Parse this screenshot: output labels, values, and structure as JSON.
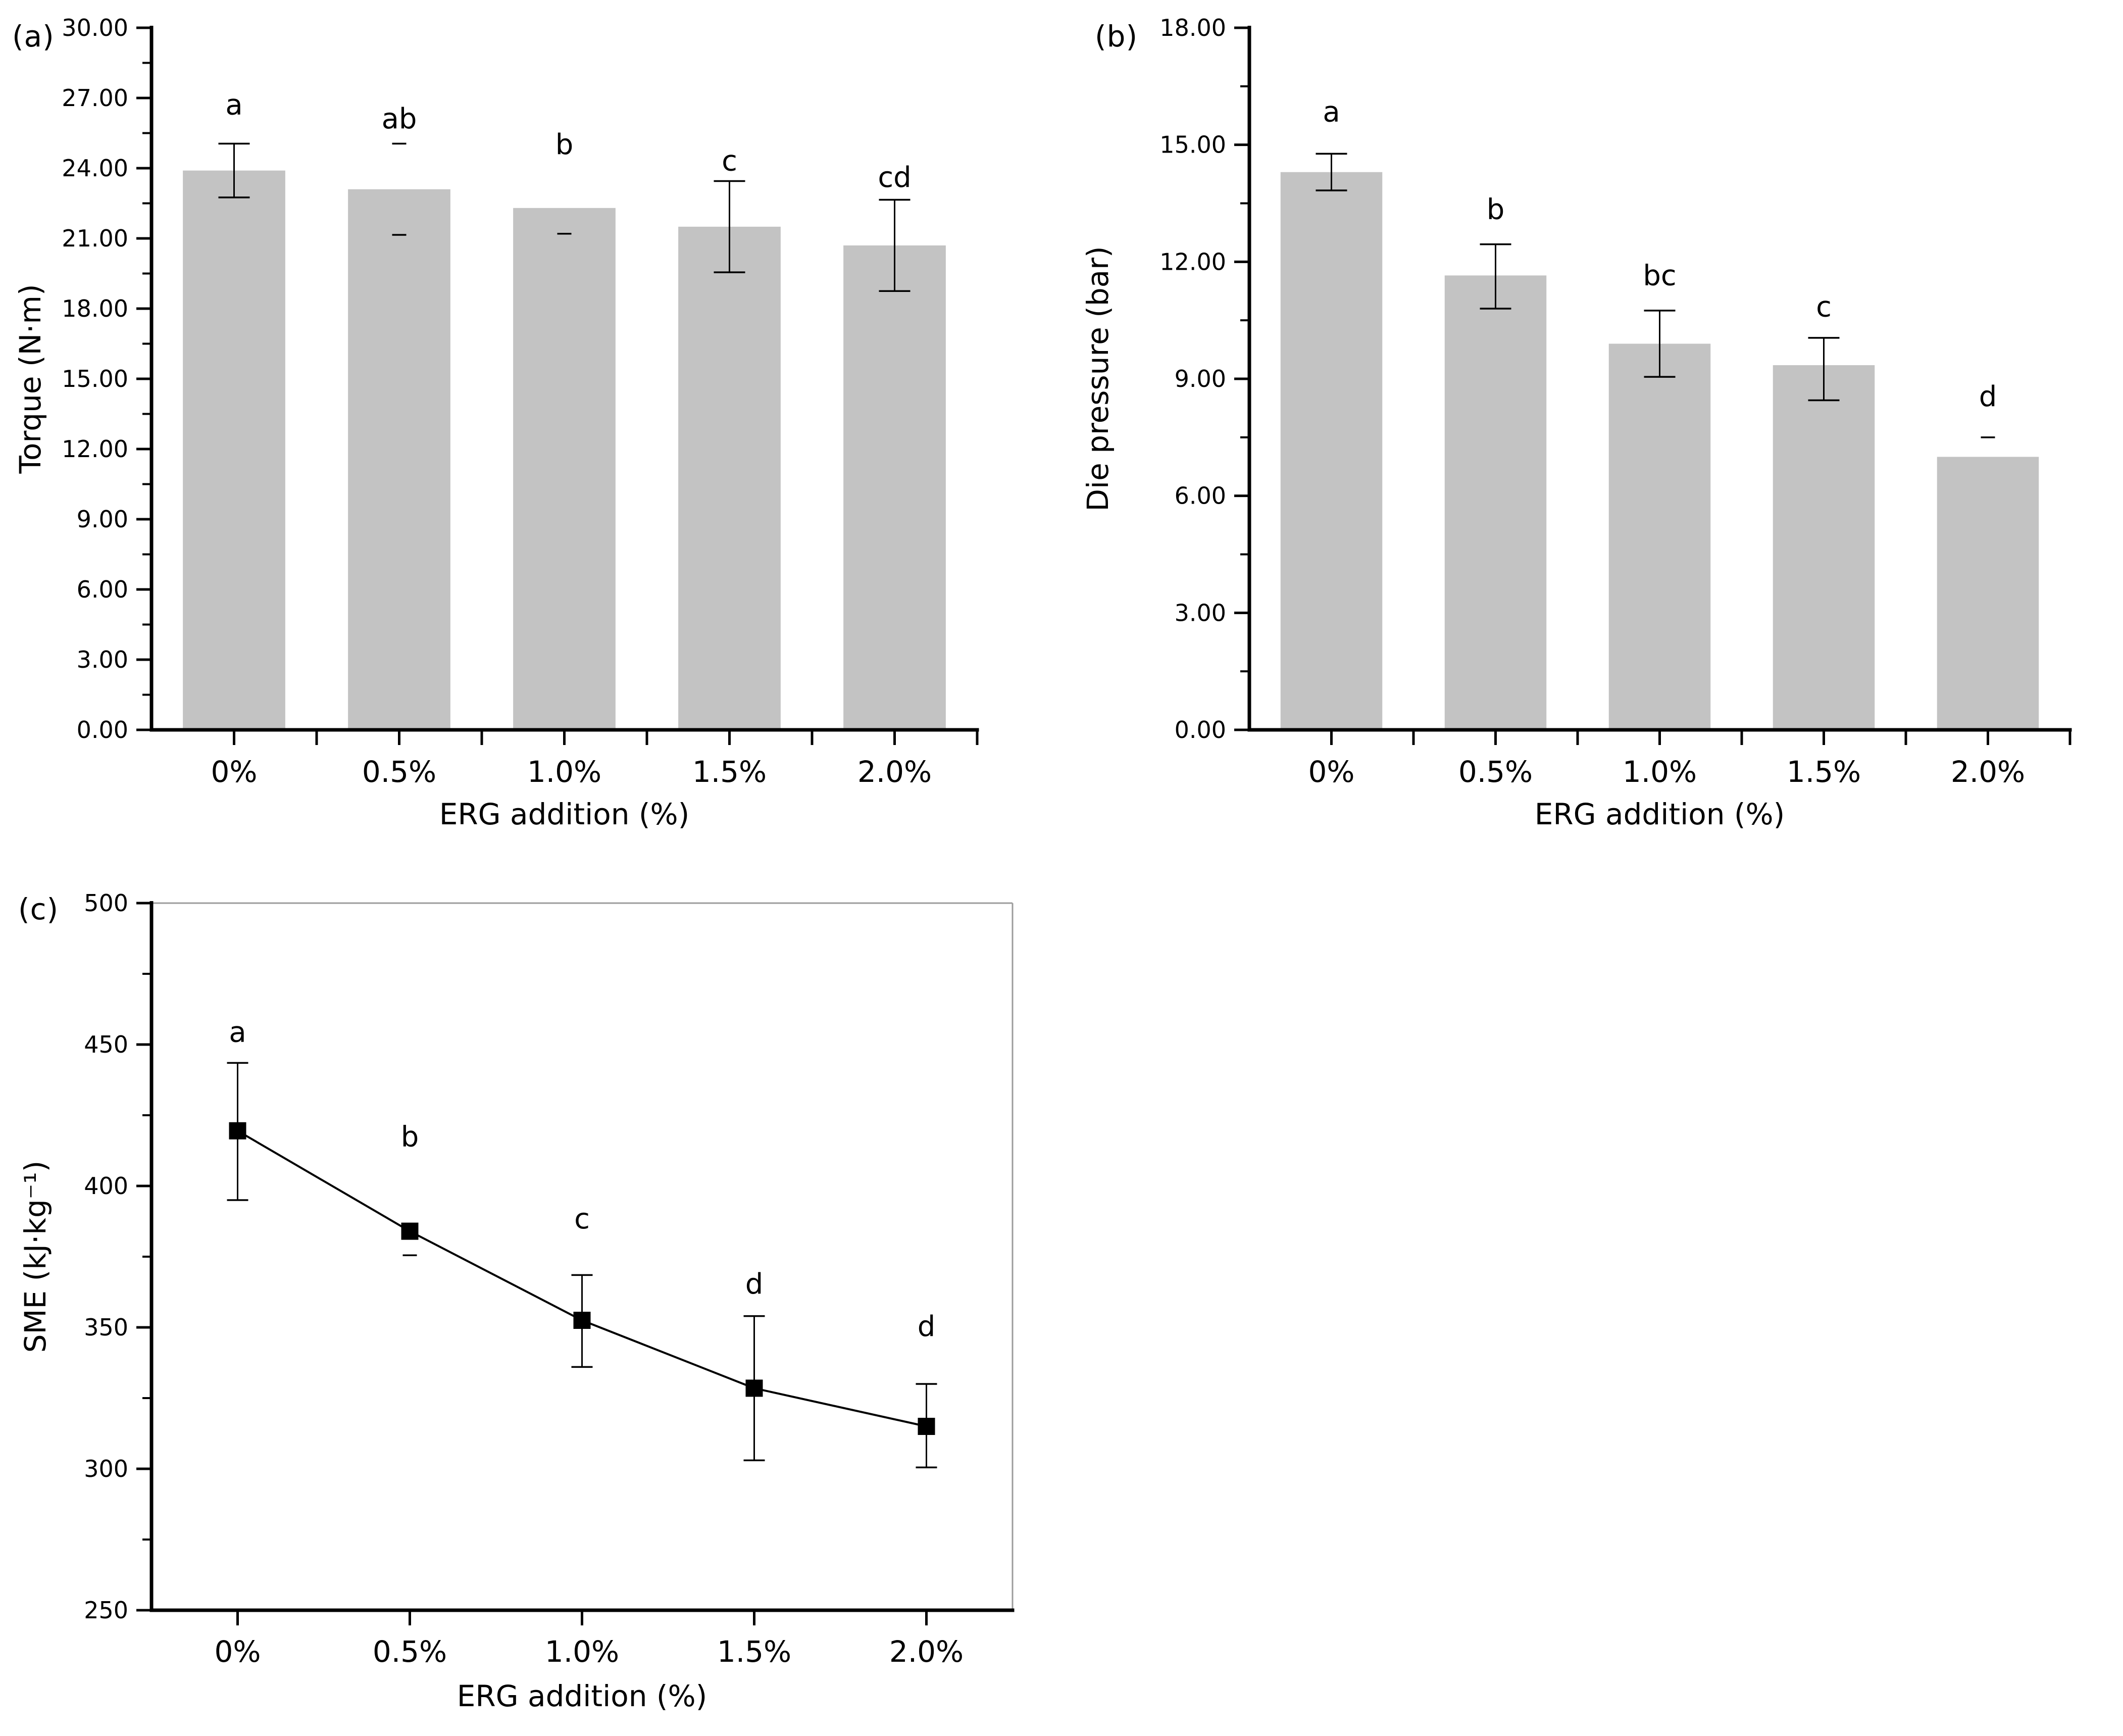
{
  "page": {
    "background": "#ffffff"
  },
  "panels": [
    {
      "tag": "(a)"
    },
    {
      "tag": "(b)"
    },
    {
      "tag": "(c)"
    }
  ],
  "colors": {
    "bar_fill": "#c3c3c3",
    "axis": "#000000",
    "frame_light": "#9c9c9c",
    "marker": "#000000",
    "text": "#000000"
  },
  "chart_data": [
    {
      "id": "torque",
      "panel": "(a)",
      "type": "bar",
      "title": "",
      "xlabel": "ERG addition (%)",
      "ylabel": "Torque (N·m)",
      "categories": [
        "0%",
        "0.5%",
        "1.0%",
        "1.5%",
        "2.0%"
      ],
      "values": [
        23.9,
        23.1,
        22.3,
        21.5,
        20.7
      ],
      "errors": [
        {
          "up": 1.15,
          "down": 1.15,
          "stem": true,
          "cap_up": true,
          "cap_down": true
        },
        {
          "up": 1.95,
          "down": 1.95,
          "stem": false,
          "cap_up": true,
          "cap_down": true
        },
        {
          "up": 0,
          "down": 1.1,
          "stem": false,
          "cap_up": false,
          "cap_down": true
        },
        {
          "up": 1.95,
          "down": 1.95,
          "stem": true,
          "cap_up": true,
          "cap_down": true
        },
        {
          "up": 1.95,
          "down": 1.95,
          "stem": true,
          "cap_up": true,
          "cap_down": true
        }
      ],
      "sig_labels": [
        "a",
        "ab",
        "b",
        "c",
        "cd"
      ],
      "sig_label_y": [
        26.3,
        25.7,
        24.6,
        23.9,
        23.2
      ],
      "ylim": [
        0,
        30
      ],
      "ytick_step": 3,
      "yminor_step": 1.5,
      "ytick_labels": [
        "0.00",
        "3.00",
        "6.00",
        "9.00",
        "12.00",
        "15.00",
        "18.00",
        "21.00",
        "24.00",
        "27.00",
        "30.00"
      ],
      "x_boundary_ticks": true,
      "grid": false,
      "legend": null,
      "box_frame": false
    },
    {
      "id": "die-pressure",
      "panel": "(b)",
      "type": "bar",
      "title": "",
      "xlabel": "ERG addition (%)",
      "ylabel": "Die pressure (bar)",
      "categories": [
        "0%",
        "0.5%",
        "1.0%",
        "1.5%",
        "2.0%"
      ],
      "values": [
        14.3,
        11.65,
        9.9,
        9.35,
        7.0
      ],
      "errors": [
        {
          "up": 0.47,
          "down": 0.47,
          "stem": true,
          "cap_up": true,
          "cap_down": true
        },
        {
          "up": 0.8,
          "down": 0.85,
          "stem": true,
          "cap_up": true,
          "cap_down": true
        },
        {
          "up": 0.85,
          "down": 0.85,
          "stem": true,
          "cap_up": true,
          "cap_down": true
        },
        {
          "up": 0.7,
          "down": 0.9,
          "stem": true,
          "cap_up": true,
          "cap_down": true
        },
        {
          "up": 0.5,
          "down": 0,
          "stem": false,
          "cap_up": true,
          "cap_down": false
        }
      ],
      "sig_labels": [
        "a",
        "b",
        "bc",
        "c",
        "d"
      ],
      "sig_label_y": [
        15.6,
        13.1,
        11.4,
        10.6,
        8.3
      ],
      "ylim": [
        0,
        18
      ],
      "ytick_step": 3,
      "yminor_step": 1.5,
      "ytick_labels": [
        "0.00",
        "3.00",
        "6.00",
        "9.00",
        "12.00",
        "15.00",
        "18.00"
      ],
      "x_boundary_ticks": true,
      "grid": false,
      "legend": null,
      "box_frame": false
    },
    {
      "id": "sme",
      "panel": "(c)",
      "type": "line",
      "title": "",
      "xlabel": "ERG addition (%)",
      "ylabel": "SME (kJ·kg⁻¹)",
      "categories": [
        "0%",
        "0.5%",
        "1.0%",
        "1.5%",
        "2.0%"
      ],
      "values": [
        419.5,
        384,
        352.5,
        328.5,
        315
      ],
      "errors": [
        {
          "up": 24,
          "down": 24.5,
          "stem": true,
          "cap_up": true,
          "cap_down": true
        },
        {
          "up": 0,
          "down": 8.5,
          "stem": false,
          "cap_up": false,
          "cap_down": true
        },
        {
          "up": 16,
          "down": 16.5,
          "stem": true,
          "cap_up": true,
          "cap_down": true
        },
        {
          "up": 25.5,
          "down": 25.5,
          "stem": true,
          "cap_up": true,
          "cap_down": true
        },
        {
          "up": 15,
          "down": 14.5,
          "stem": true,
          "cap_up": true,
          "cap_down": true
        }
      ],
      "sig_labels": [
        "a",
        "b",
        "c",
        "d",
        "d"
      ],
      "sig_label_y": [
        451,
        414,
        385,
        362,
        347
      ],
      "ylim": [
        250,
        500
      ],
      "ytick_step": 50,
      "yminor_step": 25,
      "ytick_labels": [
        "250",
        "300",
        "350",
        "400",
        "450",
        "500"
      ],
      "x_boundary_ticks": false,
      "grid": false,
      "legend": null,
      "box_frame": true,
      "marker": "square"
    }
  ]
}
